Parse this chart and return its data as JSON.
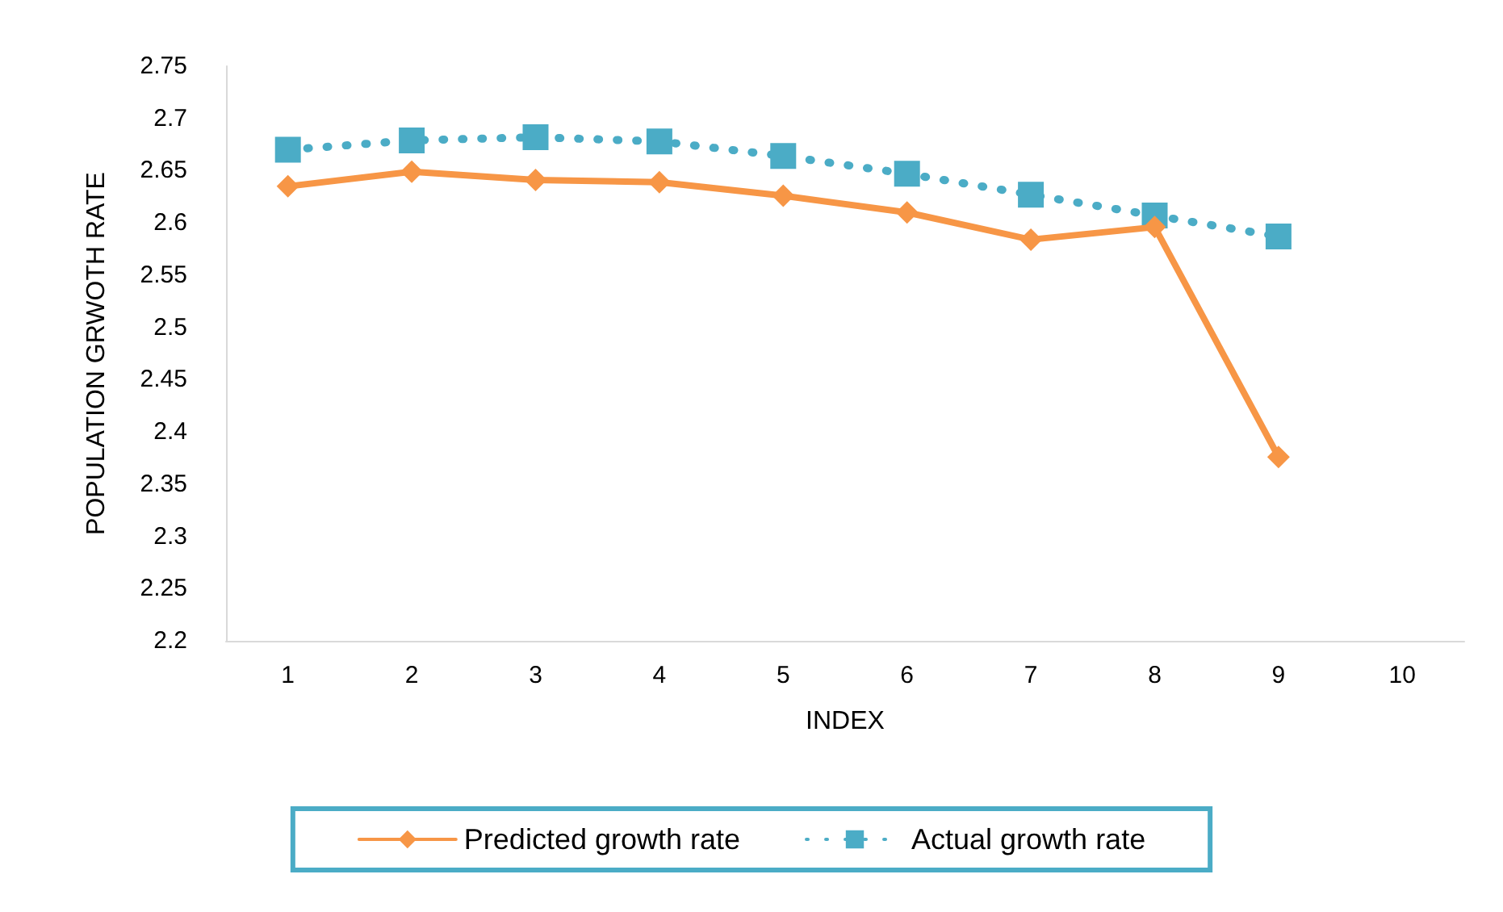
{
  "chart_data": {
    "type": "line",
    "xlabel": "INDEX",
    "ylabel": "POPULATION GRWOTH RATE",
    "categories": [
      "1",
      "2",
      "3",
      "4",
      "5",
      "6",
      "7",
      "8",
      "9",
      "10"
    ],
    "series": [
      {
        "name": "Predicted growth rate",
        "color": "#f79646",
        "marker": "diamond",
        "line_style": "solid",
        "values": [
          2.635,
          2.649,
          2.641,
          2.639,
          2.626,
          2.61,
          2.584,
          2.596,
          2.376,
          null
        ]
      },
      {
        "name": "Actual growth rate",
        "color": "#4bacc6",
        "marker": "square",
        "line_style": "dotted",
        "values": [
          2.67,
          2.679,
          2.682,
          2.678,
          2.664,
          2.647,
          2.627,
          2.607,
          2.587,
          null
        ]
      }
    ],
    "ylim": [
      2.2,
      2.75
    ],
    "yticks": [
      2.2,
      2.25,
      2.3,
      2.35,
      2.4,
      2.45,
      2.5,
      2.55,
      2.6,
      2.65,
      2.7,
      2.75
    ],
    "grid": false,
    "legend": "bottom"
  }
}
